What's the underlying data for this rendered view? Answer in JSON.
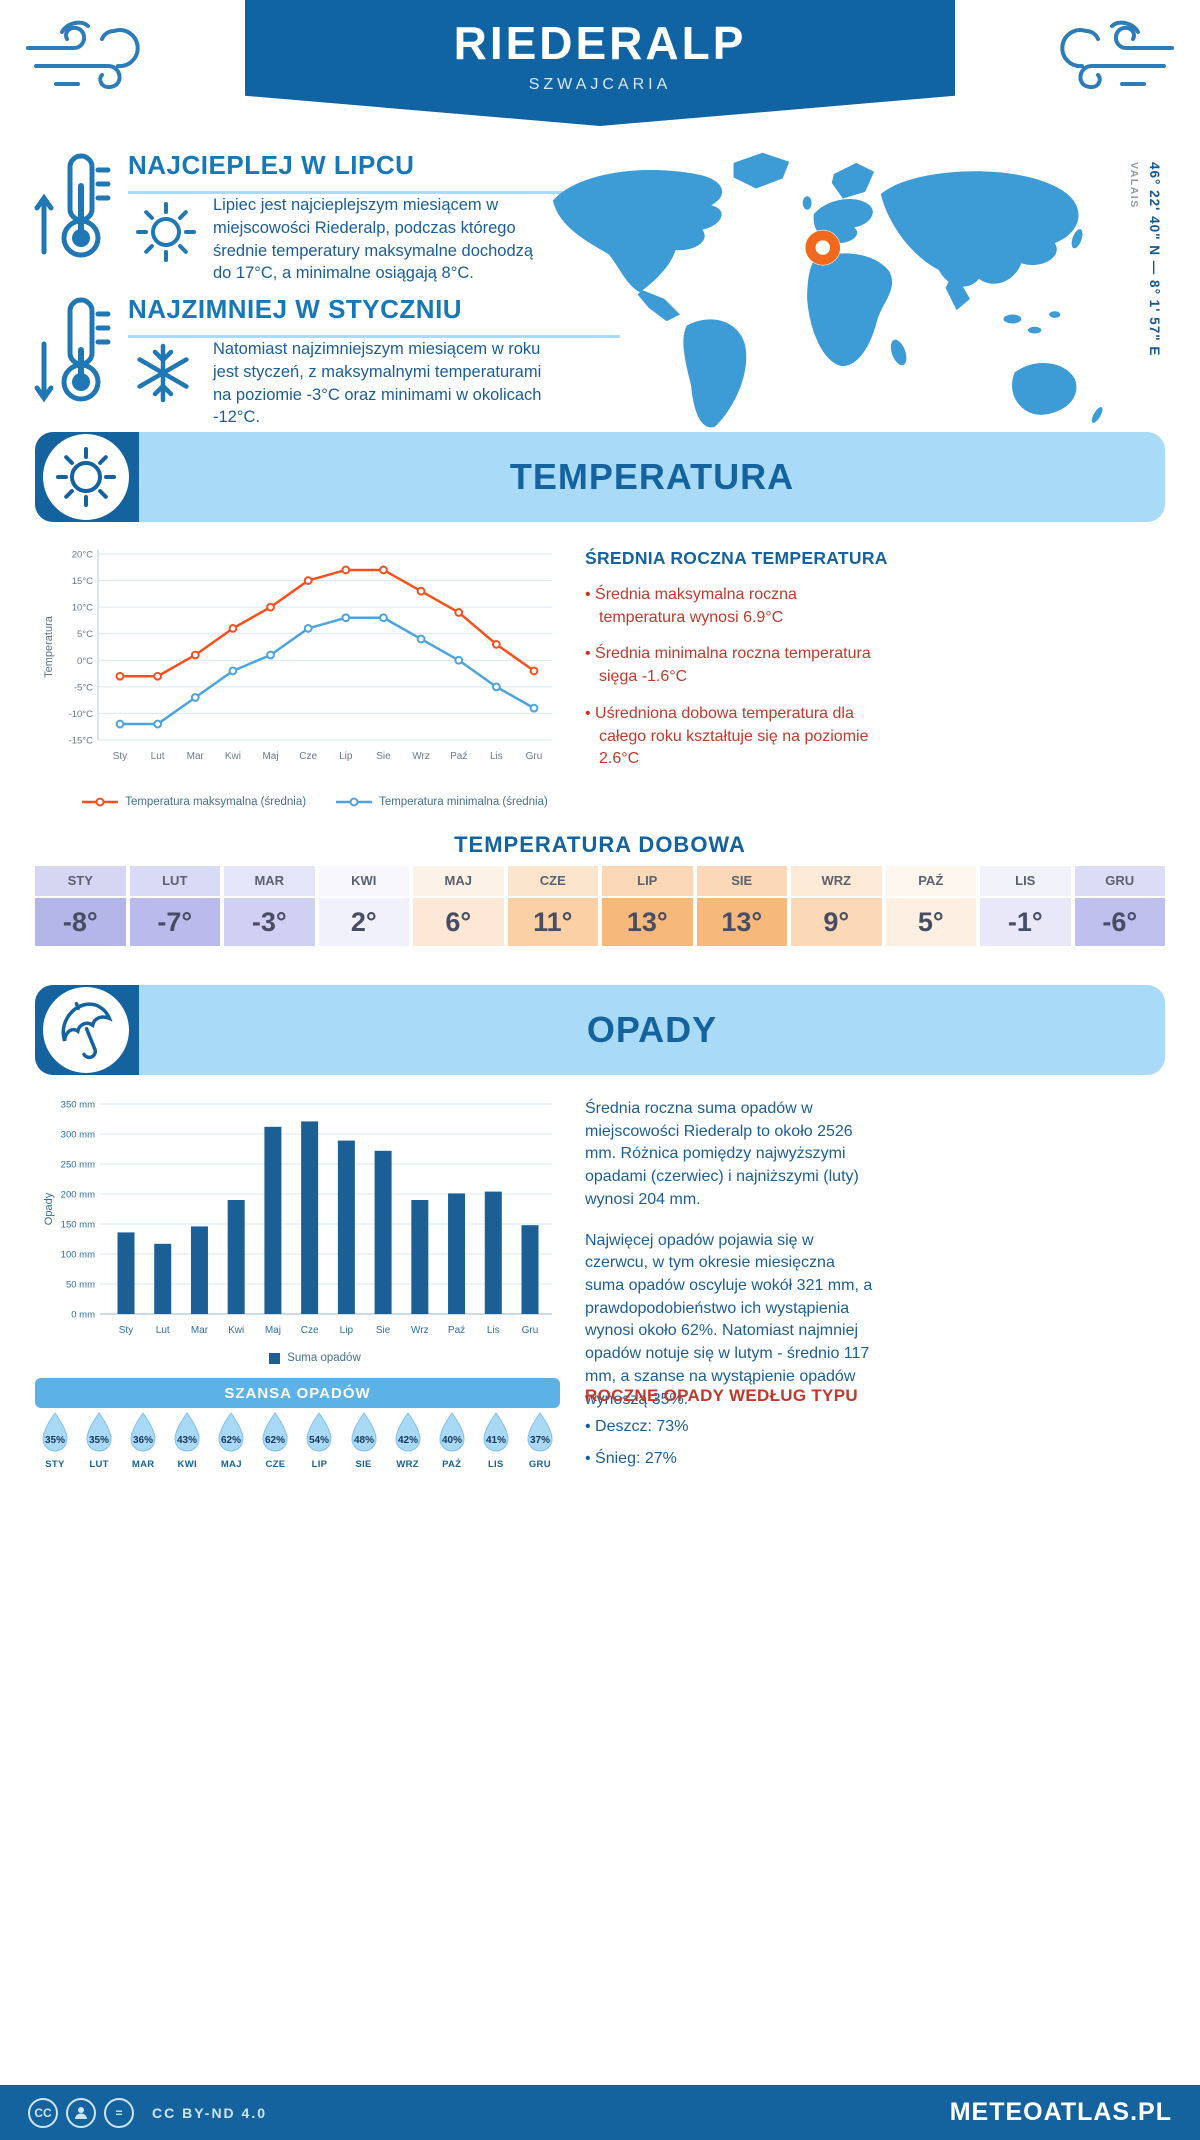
{
  "header": {
    "title": "RIEDERALP",
    "subtitle": "SZWAJCARIA"
  },
  "highlights": {
    "warm": {
      "heading": "NAJCIEPLEJ W LIPCU",
      "text": "Lipiec jest najcieplejszym miesiącem w miejscowości Riederalp, podczas którego średnie temperatury maksymalne dochodzą do 17°C, a minimalne osiągają 8°C."
    },
    "cold": {
      "heading": "NAJZIMNIEJ W STYCZNIU",
      "text": "Natomiast najzimniejszym miesiącem w roku jest styczeń, z maksymalnymi temperaturami na poziomie -3°C oraz minimami w okolicach -12°C."
    }
  },
  "map": {
    "coordinates": "46° 22' 40\" N — 8° 1' 57\" E",
    "region": "VALAIS"
  },
  "temperature_section": {
    "title": "TEMPERATURA",
    "annual": {
      "heading": "ŚREDNIA ROCZNA TEMPERATURA",
      "bullets": [
        "Średnia maksymalna roczna temperatura wynosi 6.9°C",
        "Średnia minimalna roczna temperatura sięga -1.6°C",
        "Uśredniona dobowa temperatura dla całego roku kształtuje się na poziomie 2.6°C"
      ]
    },
    "daily": {
      "heading": "TEMPERATURA DOBOWA",
      "months": [
        "STY",
        "LUT",
        "MAR",
        "KWI",
        "MAJ",
        "CZE",
        "LIP",
        "SIE",
        "WRZ",
        "PAŹ",
        "LIS",
        "GRU"
      ],
      "values": [
        "-8°",
        "-7°",
        "-3°",
        "2°",
        "6°",
        "11°",
        "13°",
        "13°",
        "9°",
        "5°",
        "-1°",
        "-6°"
      ],
      "cell_colors": [
        "#b4b5e9",
        "#babbec",
        "#cfd0f3",
        "#f1f1fb",
        "#fce8d5",
        "#fad0a4",
        "#f7b87b",
        "#f7b87b",
        "#fbd9b6",
        "#fdf0e2",
        "#e8e8f8",
        "#bfc0ee"
      ]
    }
  },
  "precipitation_section": {
    "title": "OPADY",
    "paragraphs": [
      "Średnia roczna suma opadów w miejscowości Riederalp to około 2526 mm. Różnica pomiędzy najwyższymi opadami (czerwiec) i najniższymi (luty) wynosi 204 mm.",
      "Najwięcej opadów pojawia się w czerwcu, w tym okresie miesięczna suma opadów oscyluje wokół 321 mm, a prawdopodobieństwo ich wystąpienia wynosi około 62%. Natomiast najmniej opadów notuje się w lutym - średnio 117 mm, a szanse na wystąpienie opadów wynoszą 35%.",
      ""
    ],
    "chance": {
      "heading": "SZANSA OPADÓW",
      "months": [
        "STY",
        "LUT",
        "MAR",
        "KWI",
        "MAJ",
        "CZE",
        "LIP",
        "SIE",
        "WRZ",
        "PAŹ",
        "LIS",
        "GRU"
      ],
      "values": [
        "35%",
        "35%",
        "36%",
        "43%",
        "62%",
        "62%",
        "54%",
        "48%",
        "42%",
        "40%",
        "41%",
        "37%"
      ]
    },
    "types": {
      "heading": "ROCZNE OPADY WEDŁUG TYPU",
      "bullets": [
        "Deszcz: 73%",
        "Śnieg: 27%"
      ]
    }
  },
  "footer": {
    "license": "CC BY-ND 4.0",
    "site": "METEOATLAS.PL"
  },
  "colors": {
    "header_blue": "#1164a4",
    "section_banner_blue": "#a9daf8",
    "dark_blue": "#15639e",
    "max_line": "#f4511e",
    "min_line": "#4da3e0",
    "bar_blue": "#1b5f95",
    "red_text": "#bf3a2b",
    "marker_orange": "#f2691d"
  },
  "chart_data": [
    {
      "type": "line",
      "title": "TEMPERATURA",
      "ylabel": "Temperatura",
      "categories": [
        "Sty",
        "Lut",
        "Mar",
        "Kwi",
        "Maj",
        "Cze",
        "Lip",
        "Sie",
        "Wrz",
        "Paź",
        "Lis",
        "Gru"
      ],
      "ylim": [
        -15,
        20
      ],
      "ytick_step": 5,
      "yunit": "°C",
      "grid": true,
      "legend_position": "bottom",
      "series": [
        {
          "name": "Temperatura maksymalna (średnia)",
          "color": "#f4511e",
          "values": [
            -3,
            -3,
            1,
            6,
            10,
            15,
            17,
            17,
            13,
            9,
            3,
            -2
          ]
        },
        {
          "name": "Temperatura minimalna (średnia)",
          "color": "#4da3e0",
          "values": [
            -12,
            -12,
            -7,
            -2,
            1,
            6,
            8,
            8,
            4,
            0,
            -5,
            -9
          ]
        }
      ]
    },
    {
      "type": "bar",
      "title": "OPADY",
      "ylabel": "Opady",
      "categories": [
        "Sty",
        "Lut",
        "Mar",
        "Kwi",
        "Maj",
        "Cze",
        "Lip",
        "Sie",
        "Wrz",
        "Paź",
        "Lis",
        "Gru"
      ],
      "ylim": [
        0,
        350
      ],
      "ytick_step": 50,
      "yunit": "mm",
      "grid": true,
      "legend_position": "bottom",
      "series": [
        {
          "name": "Suma opadów",
          "color": "#1b5f95",
          "values": [
            136,
            117,
            146,
            190,
            312,
            321,
            289,
            272,
            190,
            201,
            204,
            148
          ]
        }
      ]
    }
  ]
}
